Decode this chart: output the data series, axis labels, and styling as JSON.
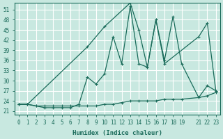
{
  "xlabel": "Humidex (Indice chaleur)",
  "background_color": "#c8e8e0",
  "grid_color": "#ffffff",
  "line_color": "#1a6b5a",
  "xticks": [
    0,
    1,
    2,
    3,
    4,
    5,
    6,
    7,
    8,
    9,
    10,
    11,
    12,
    13,
    14,
    15,
    16,
    17,
    18,
    19,
    21,
    22,
    23
  ],
  "xtick_labels": [
    "0",
    "1",
    "2",
    "3",
    "4",
    "5",
    "6",
    "7",
    "8",
    "9",
    "10",
    "11",
    "12",
    "13",
    "14",
    "15",
    "16",
    "17",
    "18",
    "19",
    "21",
    "22",
    "23"
  ],
  "yticks": [
    21,
    24,
    27,
    30,
    33,
    36,
    39,
    42,
    45,
    48,
    51
  ],
  "ylim": [
    20,
    53
  ],
  "xlim": [
    -0.5,
    23.5
  ],
  "line1_x": [
    0,
    1,
    2,
    3,
    4,
    5,
    6,
    7,
    8,
    9,
    10,
    11,
    12,
    13,
    14,
    15,
    16,
    17,
    18,
    19,
    21,
    22,
    23
  ],
  "line1_y": [
    23,
    23,
    22.5,
    22.5,
    22.5,
    22.5,
    22.5,
    22.5,
    22.5,
    22.5,
    23,
    23,
    23.5,
    24,
    24,
    24,
    24,
    24.5,
    24.5,
    24.5,
    25,
    25.5,
    26.5
  ],
  "line2_x": [
    0,
    1,
    2,
    3,
    4,
    5,
    6,
    7,
    8,
    9,
    10,
    11,
    12,
    13,
    14,
    15,
    16,
    17,
    18,
    19,
    21,
    22,
    23
  ],
  "line2_y": [
    23,
    23,
    22.5,
    22,
    22,
    22,
    22,
    23,
    31,
    29,
    32,
    43,
    35,
    52,
    35,
    34,
    48,
    36,
    49,
    35,
    25,
    28.5,
    27
  ],
  "line3_x": [
    0,
    1,
    8,
    10,
    13,
    14,
    15,
    16,
    17,
    21,
    22,
    23
  ],
  "line3_y": [
    23,
    23,
    40,
    46,
    53,
    45,
    34,
    48,
    35,
    43,
    47,
    27
  ]
}
